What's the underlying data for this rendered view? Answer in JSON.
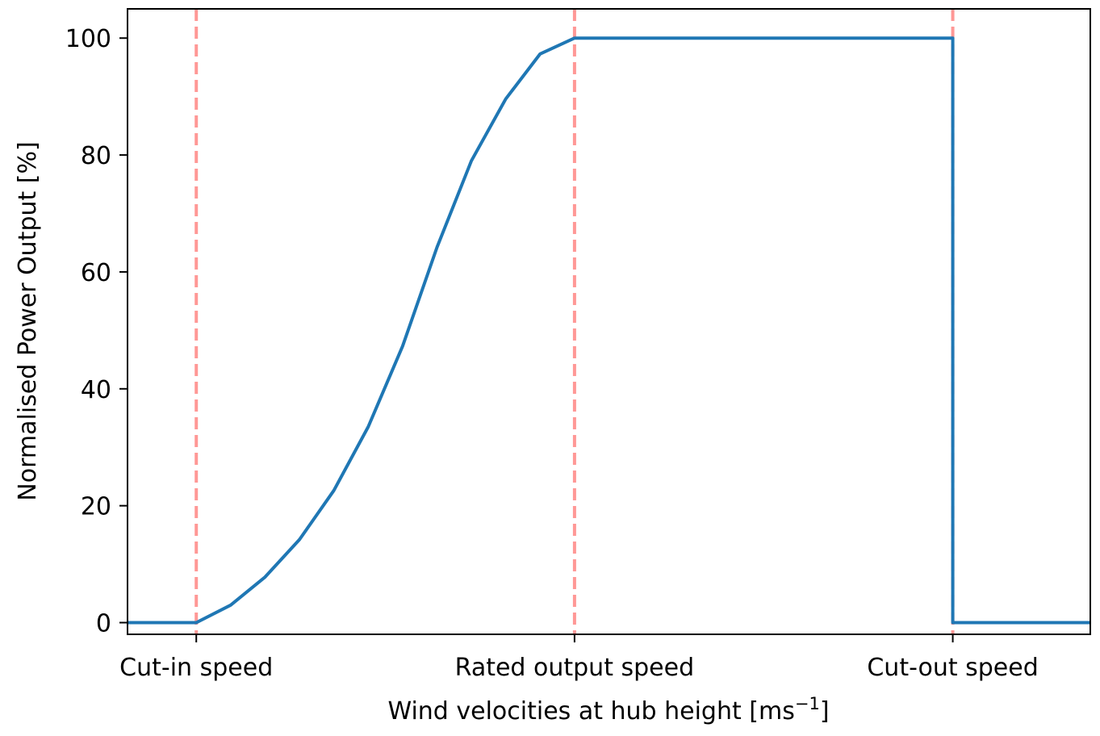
{
  "chart_data": {
    "type": "line",
    "xlabel": "Wind velocities at hub height [ms",
    "xlabel_sup": "−1",
    "xlabel_end": "]",
    "ylabel": "Normalised Power Output [%]",
    "xlim": [
      -1,
      13
    ],
    "ylim": [
      -2,
      105
    ],
    "x_ticks": [
      {
        "value": 0,
        "label": "Cut-in speed"
      },
      {
        "value": 5.5,
        "label": "Rated output speed"
      },
      {
        "value": 11,
        "label": "Cut-out speed"
      }
    ],
    "y_ticks": [
      0,
      20,
      40,
      60,
      80,
      100
    ],
    "reference_lines": [
      {
        "x": 0,
        "color": "#ff9896",
        "style": "dashed"
      },
      {
        "x": 5.5,
        "color": "#ff9896",
        "style": "dashed"
      },
      {
        "x": 11,
        "color": "#ff9896",
        "style": "dashed"
      }
    ],
    "series": [
      {
        "color": "#1f77b4",
        "x": [
          -1,
          0,
          0.5,
          1,
          1.5,
          2,
          2.5,
          3,
          3.5,
          4,
          4.5,
          5,
          5.5,
          11,
          11,
          13
        ],
        "y": [
          0,
          0,
          3,
          7.8,
          14.2,
          22.6,
          33.5,
          47.3,
          64.2,
          79,
          89.6,
          97.3,
          100,
          100,
          0,
          0
        ]
      }
    ],
    "grid": false,
    "legend": false
  }
}
